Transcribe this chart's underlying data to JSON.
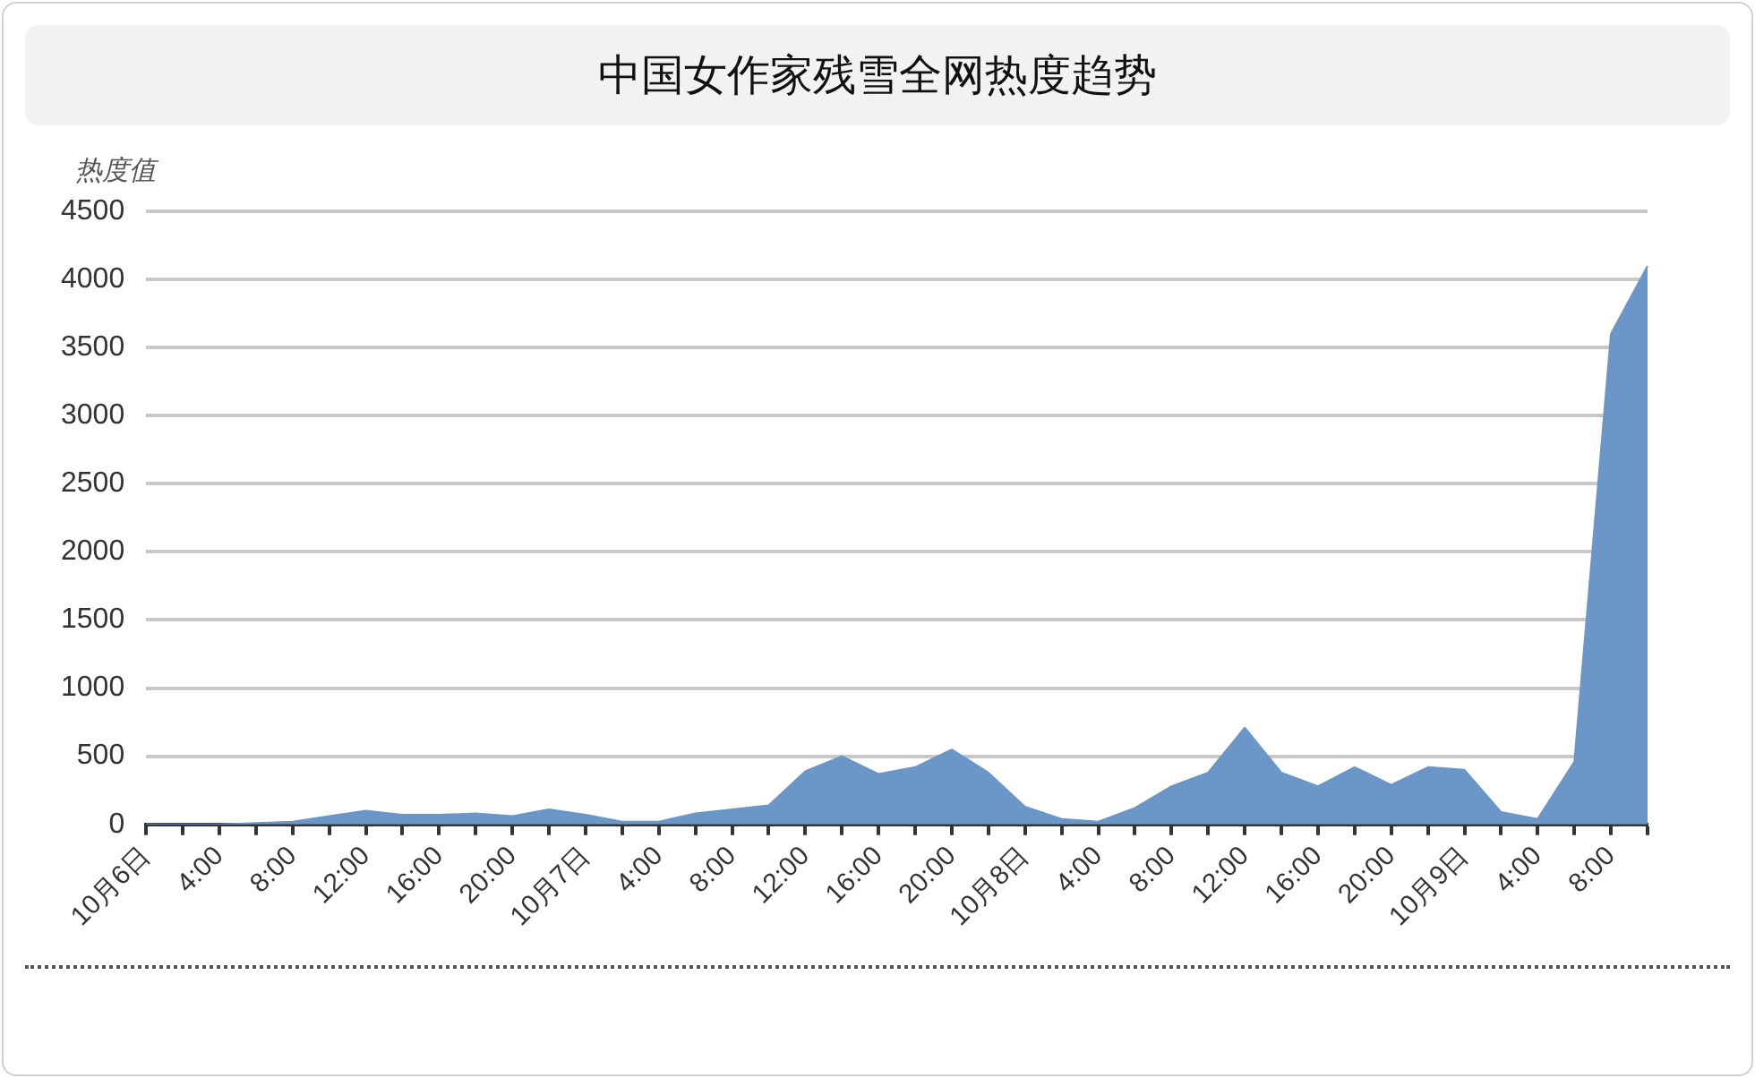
{
  "chart_data": {
    "type": "area",
    "title": "中国女作家残雪全网热度趋势",
    "ylabel": "热度值",
    "categories": [
      "10月6日",
      null,
      "4:00",
      null,
      "8:00",
      null,
      "12:00",
      null,
      "16:00",
      null,
      "20:00",
      null,
      "10月7日",
      null,
      "4:00",
      null,
      "8:00",
      null,
      "12:00",
      null,
      "16:00",
      null,
      "20:00",
      null,
      "10月8日",
      null,
      "4:00",
      null,
      "8:00",
      null,
      "12:00",
      null,
      "16:00",
      null,
      "20:00",
      null,
      "10月9日",
      null,
      "4:00",
      null,
      "8:00",
      null
    ],
    "series": [
      {
        "color": "#6a96c8",
        "values": [
          0,
          0,
          0,
          10,
          20,
          60,
          100,
          70,
          70,
          80,
          60,
          110,
          70,
          20,
          20,
          80,
          110,
          140,
          390,
          500,
          370,
          420,
          550,
          380,
          130,
          40,
          20,
          120,
          280,
          380,
          710,
          380,
          280,
          420,
          290,
          420,
          400,
          90,
          40,
          460,
          3600,
          4100
        ]
      }
    ],
    "ylim": [
      0,
      4500
    ],
    "yticks": [
      0,
      500,
      1000,
      1500,
      2000,
      2500,
      3000,
      3500,
      4000,
      4500
    ],
    "grid": "y",
    "legend": false,
    "marker": "none"
  }
}
